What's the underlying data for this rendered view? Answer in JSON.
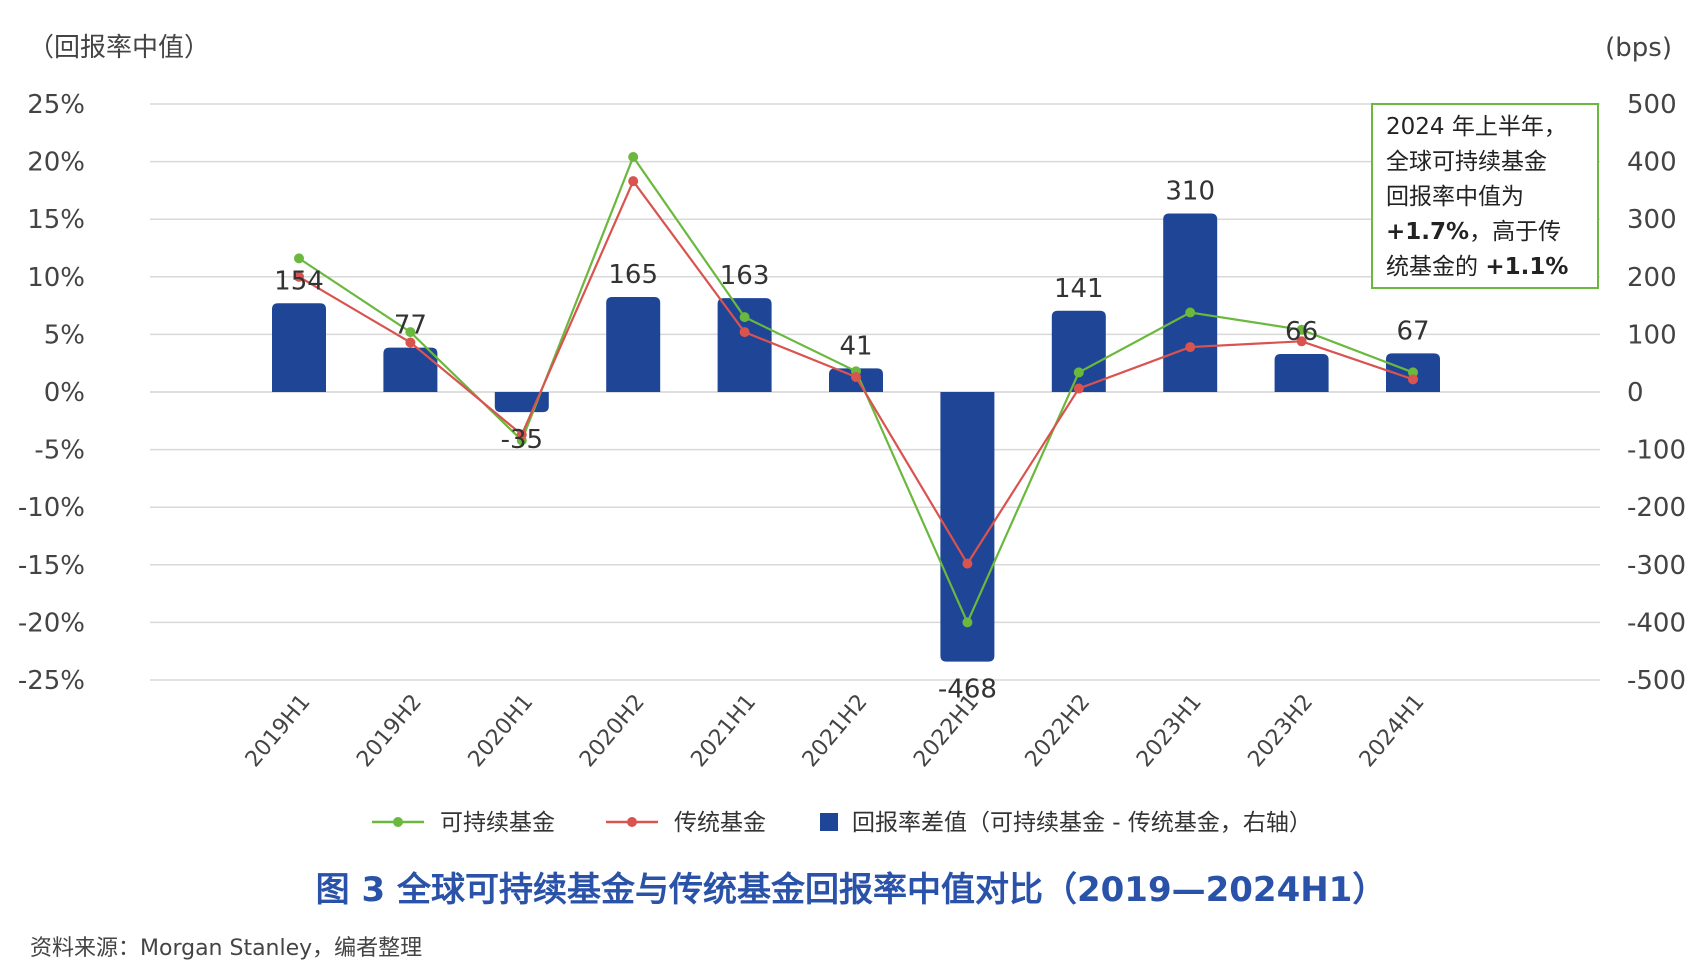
{
  "chart_data": {
    "type": "bar",
    "categories": [
      "2019H1",
      "2019H2",
      "2020H1",
      "2020H2",
      "2021H1",
      "2021H2",
      "2022H1",
      "2022H2",
      "2023H1",
      "2023H2",
      "2024H1"
    ],
    "y_left": {
      "label": "（回报率中值）",
      "ticks": [
        "25%",
        "20%",
        "15%",
        "10%",
        "5%",
        "0%",
        "-5%",
        "-10%",
        "-15%",
        "-20%",
        "-25%"
      ],
      "range": [
        -25,
        25
      ]
    },
    "y_right": {
      "label": "(bps)",
      "ticks": [
        "500",
        "400",
        "300",
        "200",
        "100",
        "0",
        "-100",
        "-200",
        "-300",
        "-400",
        "-500"
      ],
      "range": [
        -500,
        500
      ]
    },
    "series": [
      {
        "name": "回报率差值（可持续基金 - 传统基金，右轴）",
        "type": "bar",
        "axis": "right",
        "color": "#1f4597",
        "values": [
          154,
          77,
          -35,
          165,
          163,
          41,
          -468,
          141,
          310,
          66,
          67
        ]
      },
      {
        "name": "可持续基金",
        "type": "line",
        "axis": "left",
        "color": "#6ab83e",
        "values": [
          11.6,
          5.2,
          -4.2,
          20.4,
          6.5,
          1.8,
          -20.0,
          1.7,
          6.9,
          5.4,
          1.7
        ]
      },
      {
        "name": "传统基金",
        "type": "line",
        "axis": "left",
        "color": "#d9534f",
        "values": [
          10.0,
          4.3,
          -3.7,
          18.3,
          5.2,
          1.3,
          -14.9,
          0.3,
          3.9,
          4.4,
          1.1
        ]
      }
    ],
    "data_labels": [
      "154",
      "77",
      "-35",
      "165",
      "163",
      "41",
      "-468",
      "141",
      "310",
      "66",
      "67"
    ],
    "annotation": {
      "lines": [
        [
          {
            "text": "2024 年上半年，",
            "bold": false
          }
        ],
        [
          {
            "text": "全球可持续基金",
            "bold": false
          }
        ],
        [
          {
            "text": "回报率中值为",
            "bold": false
          }
        ],
        [
          {
            "text": "+1.7%",
            "bold": true
          },
          {
            "text": "，高于传",
            "bold": false
          }
        ],
        [
          {
            "text": "统基金的 ",
            "bold": false
          },
          {
            "text": "+1.1%",
            "bold": true
          }
        ]
      ],
      "border_color": "#6ab83e"
    },
    "grid": true,
    "legend_position": "bottom"
  },
  "caption": "图 3   全球可持续基金与传统基金回报率中值对比（2019—2024H1）",
  "source": "资料来源：Morgan Stanley，编者整理"
}
